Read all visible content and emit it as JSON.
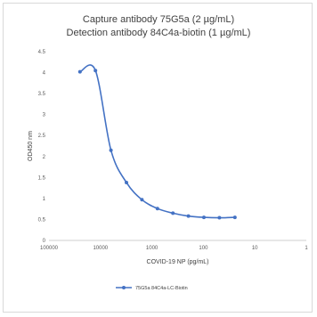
{
  "chart_data": {
    "type": "line",
    "title": "Capture antibody 75G5a (2 µg/mL)",
    "subtitle": "Detection antibody 84C4a-biotin (1 µg/mL)",
    "xlabel": "COVID-19 NP (pg/mL)",
    "ylabel": "OD450 nm",
    "x_scale": "log",
    "x_reversed": true,
    "xlim": [
      100000,
      1
    ],
    "ylim": [
      0,
      4.5
    ],
    "x_ticks": [
      100000,
      10000,
      1000,
      100,
      10,
      1
    ],
    "x_tick_labels": [
      "100000",
      "10000",
      "1000",
      "100",
      "10",
      "1"
    ],
    "y_ticks": [
      0,
      0.5,
      1,
      1.5,
      2,
      2.5,
      3,
      3.5,
      4,
      4.5
    ],
    "y_tick_labels": [
      "0",
      "0.5",
      "1",
      "1.5",
      "2",
      "2.5",
      "3",
      "3.5",
      "4",
      "4.5"
    ],
    "grid": false,
    "legend_position": "bottom",
    "series": [
      {
        "name": "75G5a 84C4a-LC-Biotin",
        "color": "#4472c4",
        "x": [
          25000,
          12500,
          6250,
          3125,
          1562.5,
          781.25,
          390.6,
          195.3,
          97.7,
          48.8,
          24.4
        ],
        "y": [
          4.02,
          4.05,
          2.15,
          1.38,
          0.97,
          0.76,
          0.65,
          0.58,
          0.55,
          0.54,
          0.55
        ]
      }
    ]
  }
}
